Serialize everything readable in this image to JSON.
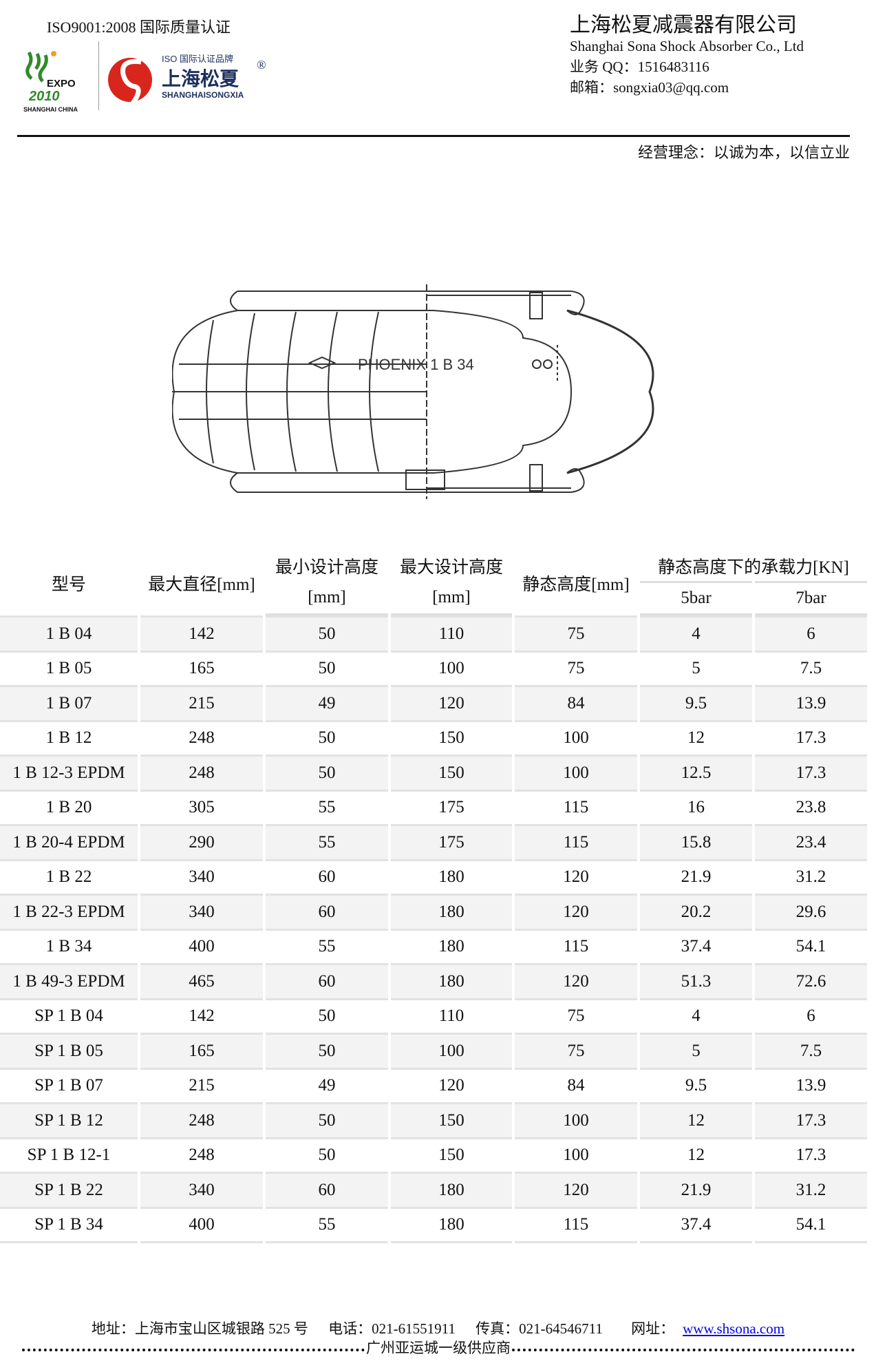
{
  "header": {
    "iso_cert": "ISO9001:2008 国际质量认证",
    "logo_expo_text": "EXPO 2010 SHANGHAI CHINA",
    "logo_brand_tag": "ISO 国际认证品牌",
    "logo_brand_cn": "上海松夏",
    "logo_brand_en": "SHANGHAISONGXIA",
    "company_cn": "上海松夏减震器有限公司",
    "company_en": "Shanghai Sona Shock Absorber Co., Ltd",
    "qq": "业务 QQ：1516483116",
    "email": "邮箱：songxia03@qq.com",
    "motto": "经营理念：以诚为本，以信立业"
  },
  "drawing": {
    "label": "PHOENIX   1 B 34"
  },
  "table": {
    "headers": {
      "model": "型号",
      "max_diameter": "最大直径[mm]",
      "min_height": "最小设计高度",
      "min_height_unit": "[mm]",
      "max_height": "最大设计高度",
      "max_height_unit": "[mm]",
      "static_height": "静态高度[mm]",
      "load": "静态高度下的承载力[KN]",
      "load_5bar": "5bar",
      "load_7bar": "7bar"
    },
    "rows": [
      [
        "1 B 04",
        "142",
        "50",
        "110",
        "75",
        "4",
        "6"
      ],
      [
        "1 B 05",
        "165",
        "50",
        "100",
        "75",
        "5",
        "7.5"
      ],
      [
        "1 B 07",
        "215",
        "49",
        "120",
        "84",
        "9.5",
        "13.9"
      ],
      [
        "1 B 12",
        "248",
        "50",
        "150",
        "100",
        "12",
        "17.3"
      ],
      [
        "1 B 12-3 EPDM",
        "248",
        "50",
        "150",
        "100",
        "12.5",
        "17.3"
      ],
      [
        "1 B 20",
        "305",
        "55",
        "175",
        "115",
        "16",
        "23.8"
      ],
      [
        "1 B 20-4 EPDM",
        "290",
        "55",
        "175",
        "115",
        "15.8",
        "23.4"
      ],
      [
        "1 B 22",
        "340",
        "60",
        "180",
        "120",
        "21.9",
        "31.2"
      ],
      [
        "1 B 22-3 EPDM",
        "340",
        "60",
        "180",
        "120",
        "20.2",
        "29.6"
      ],
      [
        "1 B 34",
        "400",
        "55",
        "180",
        "115",
        "37.4",
        "54.1"
      ],
      [
        "1 B 49-3 EPDM",
        "465",
        "60",
        "180",
        "120",
        "51.3",
        "72.6"
      ],
      [
        "SP 1 B 04",
        "142",
        "50",
        "110",
        "75",
        "4",
        "6"
      ],
      [
        "SP 1 B 05",
        "165",
        "50",
        "100",
        "75",
        "5",
        "7.5"
      ],
      [
        "SP 1 B 07",
        "215",
        "49",
        "120",
        "84",
        "9.5",
        "13.9"
      ],
      [
        "SP 1 B 12",
        "248",
        "50",
        "150",
        "100",
        "12",
        "17.3"
      ],
      [
        "SP 1 B 12-1",
        "248",
        "50",
        "150",
        "100",
        "12",
        "17.3"
      ],
      [
        "SP 1 B 22",
        "340",
        "60",
        "180",
        "120",
        "21.9",
        "31.2"
      ],
      [
        "SP 1 B 34",
        "400",
        "55",
        "180",
        "115",
        "37.4",
        "54.1"
      ]
    ]
  },
  "footer": {
    "address": "地址：上海市宝山区城银路 525 号",
    "phone": "电话：021-61551911",
    "fax": "传真：021-64546711",
    "web_label": "网址：",
    "web_link": "www.shsona.com",
    "supplier": "广州亚运城一级供应商"
  },
  "colors": {
    "brand_red": "#d8261c",
    "brand_navy": "#1c2f5e",
    "expo_green": "#2f8a2a",
    "link": "#0000ee"
  }
}
